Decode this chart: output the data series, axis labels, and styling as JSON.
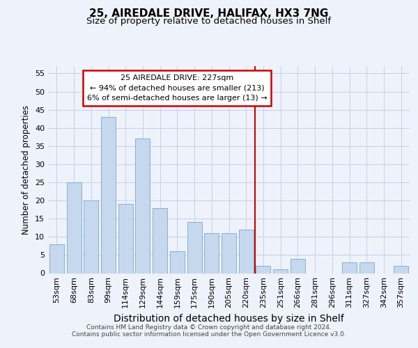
{
  "title": "25, AIREDALE DRIVE, HALIFAX, HX3 7NG",
  "subtitle": "Size of property relative to detached houses in Shelf",
  "xlabel": "Distribution of detached houses by size in Shelf",
  "ylabel": "Number of detached properties",
  "categories": [
    "53sqm",
    "68sqm",
    "83sqm",
    "99sqm",
    "114sqm",
    "129sqm",
    "144sqm",
    "159sqm",
    "175sqm",
    "190sqm",
    "205sqm",
    "220sqm",
    "235sqm",
    "251sqm",
    "266sqm",
    "281sqm",
    "296sqm",
    "311sqm",
    "327sqm",
    "342sqm",
    "357sqm"
  ],
  "values": [
    8,
    25,
    20,
    43,
    19,
    37,
    18,
    6,
    14,
    11,
    11,
    12,
    2,
    1,
    4,
    0,
    0,
    3,
    3,
    0,
    2
  ],
  "bar_color": "#c5d8ee",
  "bar_edge_color": "#7aa8cc",
  "background_color": "#eef2fa",
  "grid_color": "#c8cfe8",
  "vline_color": "#cc0000",
  "annotation_text": "25 AIREDALE DRIVE: 227sqm\n← 94% of detached houses are smaller (213)\n6% of semi-detached houses are larger (13) →",
  "annotation_box_edgecolor": "#cc0000",
  "footer_line1": "Contains HM Land Registry data © Crown copyright and database right 2024.",
  "footer_line2": "Contains public sector information licensed under the Open Government Licence v3.0.",
  "ylim": [
    0,
    57
  ],
  "yticks": [
    0,
    5,
    10,
    15,
    20,
    25,
    30,
    35,
    40,
    45,
    50,
    55
  ],
  "title_fontsize": 11,
  "subtitle_fontsize": 9.5,
  "xlabel_fontsize": 10,
  "ylabel_fontsize": 8.5,
  "tick_fontsize": 8,
  "annotation_fontsize": 8,
  "footer_fontsize": 6.5
}
